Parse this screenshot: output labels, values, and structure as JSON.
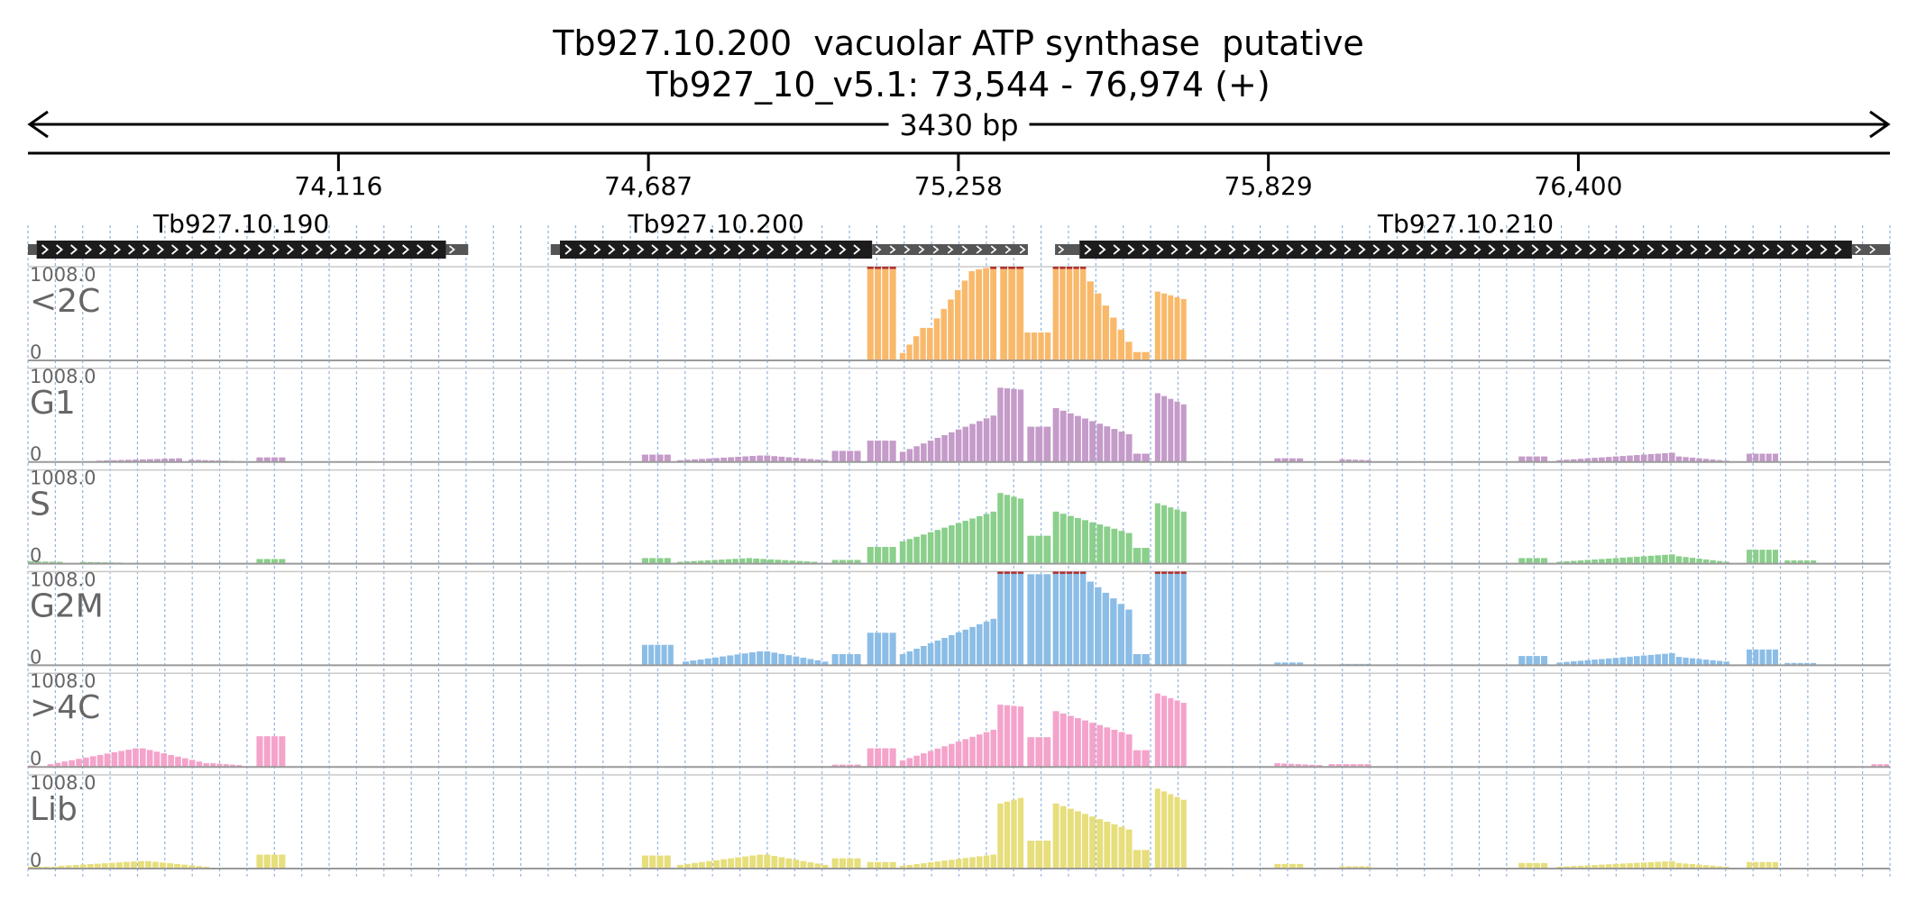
{
  "header": {
    "title_line1": "Tb927.10.200  vacuolar ATP synthase  putative",
    "title_line2": "Tb927_10_v5.1: 73,544 - 76,974 (+)",
    "span_label": "3430 bp"
  },
  "chart_data": {
    "type": "area",
    "region": {
      "start": 73544,
      "end": 76974
    },
    "ruler_ticks": [
      {
        "pos": 74116,
        "label": "74,116"
      },
      {
        "pos": 74687,
        "label": "74,687"
      },
      {
        "pos": 75258,
        "label": "75,258"
      },
      {
        "pos": 75829,
        "label": "75,829"
      },
      {
        "pos": 76400,
        "label": "76,400"
      }
    ],
    "genes": [
      {
        "name": "Tb927.10.190",
        "utr5": [
          73544,
          73560
        ],
        "cds": [
          73560,
          74314
        ],
        "utr3": [
          74314,
          74355
        ]
      },
      {
        "name": "Tb927.10.200",
        "utr5": [
          74507,
          74524
        ],
        "cds": [
          74524,
          75099
        ],
        "utr3": [
          75099,
          75386
        ]
      },
      {
        "name": "Tb927.10.210",
        "utr5": [
          75436,
          75481
        ],
        "cds": [
          75481,
          76904
        ],
        "utr3": [
          76904,
          76974
        ]
      }
    ],
    "tracks": [
      {
        "label": "<2C",
        "ymax_label": "1008.0",
        "ymin_label": "0",
        "color": "#F9B96B"
      },
      {
        "label": "G1",
        "ymax_label": "1008.0",
        "ymin_label": "0",
        "color": "#C49BC9"
      },
      {
        "label": "S",
        "ymax_label": "1008.0",
        "ymin_label": "0",
        "color": "#8ACF8B"
      },
      {
        "label": "G2M",
        "ymax_label": "1008.0",
        "ymin_label": "0",
        "color": "#8BBDE6"
      },
      {
        "label": ">4C",
        "ymax_label": "1008.0",
        "ymin_label": "0",
        "color": "#F4A3CA"
      },
      {
        "label": "Lib",
        "ymax_label": "1008.0",
        "ymin_label": "0",
        "color": "#E7DE7C"
      }
    ],
    "ylim": [
      0,
      1008
    ],
    "coverage": [
      [
        {
          "x": [
            75090,
            75145
          ],
          "y": [
            1008,
            1008
          ]
        },
        {
          "x": [
            75150,
            75200
          ],
          "y": [
            80,
            350
          ]
        },
        {
          "x": [
            75200,
            75290
          ],
          "y": [
            350,
            960
          ]
        },
        {
          "x": [
            75290,
            75330
          ],
          "y": [
            980,
            1008
          ]
        },
        {
          "x": [
            75335,
            75380
          ],
          "y": [
            1008,
            1008
          ]
        },
        {
          "x": [
            75380,
            75430
          ],
          "y": [
            300,
            300
          ]
        },
        {
          "x": [
            75432,
            75495
          ],
          "y": [
            1008,
            1008
          ]
        },
        {
          "x": [
            75495,
            75580
          ],
          "y": [
            850,
            200
          ]
        },
        {
          "x": [
            75580,
            75612
          ],
          "y": [
            90,
            90
          ]
        },
        {
          "x": [
            75620,
            75680
          ],
          "y": [
            740,
            660
          ]
        }
      ],
      [
        {
          "x": [
            73544,
            73565
          ],
          "y": [
            8,
            8
          ]
        },
        {
          "x": [
            73670,
            73830
          ],
          "y": [
            15,
            40
          ]
        },
        {
          "x": [
            73840,
            73940
          ],
          "y": [
            25,
            10
          ]
        },
        {
          "x": [
            73965,
            74020
          ],
          "y": [
            50,
            50
          ]
        },
        {
          "x": [
            74675,
            74730
          ],
          "y": [
            80,
            80
          ]
        },
        {
          "x": [
            74740,
            74900
          ],
          "y": [
            20,
            70
          ]
        },
        {
          "x": [
            74900,
            75020
          ],
          "y": [
            70,
            20
          ]
        },
        {
          "x": [
            75025,
            75080
          ],
          "y": [
            120,
            120
          ]
        },
        {
          "x": [
            75090,
            75145
          ],
          "y": [
            230,
            230
          ]
        },
        {
          "x": [
            75150,
            75330
          ],
          "y": [
            110,
            500
          ]
        },
        {
          "x": [
            75330,
            75380
          ],
          "y": [
            800,
            780
          ]
        },
        {
          "x": [
            75385,
            75430
          ],
          "y": [
            380,
            380
          ]
        },
        {
          "x": [
            75432,
            75580
          ],
          "y": [
            580,
            300
          ]
        },
        {
          "x": [
            75580,
            75612
          ],
          "y": [
            90,
            90
          ]
        },
        {
          "x": [
            75620,
            75680
          ],
          "y": [
            740,
            620
          ]
        },
        {
          "x": [
            75840,
            75895
          ],
          "y": [
            40,
            40
          ]
        },
        {
          "x": [
            75960,
            76020
          ],
          "y": [
            30,
            20
          ]
        },
        {
          "x": [
            76290,
            76345
          ],
          "y": [
            60,
            60
          ]
        },
        {
          "x": [
            76360,
            76580
          ],
          "y": [
            20,
            100
          ]
        },
        {
          "x": [
            76580,
            76680
          ],
          "y": [
            60,
            15
          ]
        },
        {
          "x": [
            76710,
            76770
          ],
          "y": [
            90,
            90
          ]
        }
      ],
      [
        {
          "x": [
            73544,
            73610
          ],
          "y": [
            25,
            20
          ]
        },
        {
          "x": [
            73640,
            73720
          ],
          "y": [
            18,
            12
          ]
        },
        {
          "x": [
            73965,
            74020
          ],
          "y": [
            50,
            50
          ]
        },
        {
          "x": [
            74675,
            74730
          ],
          "y": [
            60,
            60
          ]
        },
        {
          "x": [
            74740,
            74880
          ],
          "y": [
            20,
            60
          ]
        },
        {
          "x": [
            74880,
            75000
          ],
          "y": [
            55,
            20
          ]
        },
        {
          "x": [
            75025,
            75080
          ],
          "y": [
            40,
            40
          ]
        },
        {
          "x": [
            75090,
            75145
          ],
          "y": [
            180,
            180
          ]
        },
        {
          "x": [
            75150,
            75330
          ],
          "y": [
            240,
            560
          ]
        },
        {
          "x": [
            75330,
            75380
          ],
          "y": [
            760,
            700
          ]
        },
        {
          "x": [
            75385,
            75430
          ],
          "y": [
            300,
            300
          ]
        },
        {
          "x": [
            75432,
            75580
          ],
          "y": [
            560,
            330
          ]
        },
        {
          "x": [
            75580,
            75612
          ],
          "y": [
            170,
            170
          ]
        },
        {
          "x": [
            75620,
            75680
          ],
          "y": [
            650,
            560
          ]
        },
        {
          "x": [
            75840,
            75880
          ],
          "y": [
            10,
            10
          ]
        },
        {
          "x": [
            76290,
            76345
          ],
          "y": [
            60,
            60
          ]
        },
        {
          "x": [
            76360,
            76580
          ],
          "y": [
            20,
            100
          ]
        },
        {
          "x": [
            76580,
            76680
          ],
          "y": [
            80,
            20
          ]
        },
        {
          "x": [
            76710,
            76770
          ],
          "y": [
            150,
            150
          ]
        },
        {
          "x": [
            76780,
            76840
          ],
          "y": [
            35,
            35
          ]
        }
      ],
      [
        {
          "x": [
            73544,
            73560
          ],
          "y": [
            15,
            15
          ]
        },
        {
          "x": [
            74675,
            74735
          ],
          "y": [
            220,
            220
          ]
        },
        {
          "x": [
            74750,
            74900
          ],
          "y": [
            40,
            150
          ]
        },
        {
          "x": [
            74900,
            75020
          ],
          "y": [
            150,
            40
          ]
        },
        {
          "x": [
            75025,
            75080
          ],
          "y": [
            120,
            120
          ]
        },
        {
          "x": [
            75090,
            75145
          ],
          "y": [
            350,
            350
          ]
        },
        {
          "x": [
            75150,
            75330
          ],
          "y": [
            120,
            500
          ]
        },
        {
          "x": [
            75330,
            75380
          ],
          "y": [
            1008,
            1008
          ]
        },
        {
          "x": [
            75385,
            75430
          ],
          "y": [
            980,
            980
          ]
        },
        {
          "x": [
            75432,
            75495
          ],
          "y": [
            1008,
            1008
          ]
        },
        {
          "x": [
            75495,
            75580
          ],
          "y": [
            900,
            600
          ]
        },
        {
          "x": [
            75580,
            75612
          ],
          "y": [
            120,
            120
          ]
        },
        {
          "x": [
            75620,
            75680
          ],
          "y": [
            1008,
            1008
          ]
        },
        {
          "x": [
            75840,
            75895
          ],
          "y": [
            30,
            30
          ]
        },
        {
          "x": [
            75960,
            76020
          ],
          "y": [
            15,
            15
          ]
        },
        {
          "x": [
            76290,
            76345
          ],
          "y": [
            100,
            100
          ]
        },
        {
          "x": [
            76360,
            76580
          ],
          "y": [
            30,
            130
          ]
        },
        {
          "x": [
            76580,
            76680
          ],
          "y": [
            90,
            40
          ]
        },
        {
          "x": [
            76710,
            76770
          ],
          "y": [
            170,
            170
          ]
        },
        {
          "x": [
            76780,
            76840
          ],
          "y": [
            25,
            25
          ]
        }
      ],
      [
        {
          "x": [
            73544,
            73560
          ],
          "y": [
            15,
            15
          ]
        },
        {
          "x": [
            73580,
            73750
          ],
          "y": [
            30,
            200
          ]
        },
        {
          "x": [
            73750,
            73880
          ],
          "y": [
            200,
            40
          ]
        },
        {
          "x": [
            73880,
            73940
          ],
          "y": [
            40,
            20
          ]
        },
        {
          "x": [
            73965,
            74020
          ],
          "y": [
            330,
            330
          ]
        },
        {
          "x": [
            75025,
            75080
          ],
          "y": [
            25,
            25
          ]
        },
        {
          "x": [
            75090,
            75145
          ],
          "y": [
            200,
            200
          ]
        },
        {
          "x": [
            75150,
            75330
          ],
          "y": [
            70,
            400
          ]
        },
        {
          "x": [
            75330,
            75380
          ],
          "y": [
            670,
            650
          ]
        },
        {
          "x": [
            75385,
            75430
          ],
          "y": [
            320,
            320
          ]
        },
        {
          "x": [
            75432,
            75580
          ],
          "y": [
            600,
            350
          ]
        },
        {
          "x": [
            75580,
            75612
          ],
          "y": [
            180,
            180
          ]
        },
        {
          "x": [
            75620,
            75680
          ],
          "y": [
            790,
            690
          ]
        },
        {
          "x": [
            75840,
            75930
          ],
          "y": [
            40,
            20
          ]
        },
        {
          "x": [
            75940,
            76020
          ],
          "y": [
            30,
            30
          ]
        },
        {
          "x": [
            76940,
            76974
          ],
          "y": [
            30,
            30
          ]
        }
      ],
      [
        {
          "x": [
            73544,
            73600
          ],
          "y": [
            20,
            20
          ]
        },
        {
          "x": [
            73600,
            73760
          ],
          "y": [
            30,
            80
          ]
        },
        {
          "x": [
            73760,
            73880
          ],
          "y": [
            80,
            20
          ]
        },
        {
          "x": [
            73965,
            74020
          ],
          "y": [
            150,
            150
          ]
        },
        {
          "x": [
            74675,
            74730
          ],
          "y": [
            140,
            140
          ]
        },
        {
          "x": [
            74740,
            74900
          ],
          "y": [
            40,
            150
          ]
        },
        {
          "x": [
            74900,
            75020
          ],
          "y": [
            150,
            40
          ]
        },
        {
          "x": [
            75025,
            75080
          ],
          "y": [
            110,
            110
          ]
        },
        {
          "x": [
            75090,
            75145
          ],
          "y": [
            70,
            70
          ]
        },
        {
          "x": [
            75150,
            75330
          ],
          "y": [
            30,
            150
          ]
        },
        {
          "x": [
            75330,
            75380
          ],
          "y": [
            700,
            760
          ]
        },
        {
          "x": [
            75385,
            75430
          ],
          "y": [
            300,
            300
          ]
        },
        {
          "x": [
            75432,
            75580
          ],
          "y": [
            700,
            420
          ]
        },
        {
          "x": [
            75580,
            75612
          ],
          "y": [
            200,
            200
          ]
        },
        {
          "x": [
            75620,
            75680
          ],
          "y": [
            860,
            740
          ]
        },
        {
          "x": [
            75840,
            75895
          ],
          "y": [
            50,
            50
          ]
        },
        {
          "x": [
            75960,
            76020
          ],
          "y": [
            25,
            25
          ]
        },
        {
          "x": [
            76290,
            76345
          ],
          "y": [
            60,
            60
          ]
        },
        {
          "x": [
            76360,
            76580
          ],
          "y": [
            20,
            80
          ]
        },
        {
          "x": [
            76580,
            76680
          ],
          "y": [
            60,
            20
          ]
        },
        {
          "x": [
            76710,
            76770
          ],
          "y": [
            70,
            70
          ]
        }
      ]
    ]
  }
}
